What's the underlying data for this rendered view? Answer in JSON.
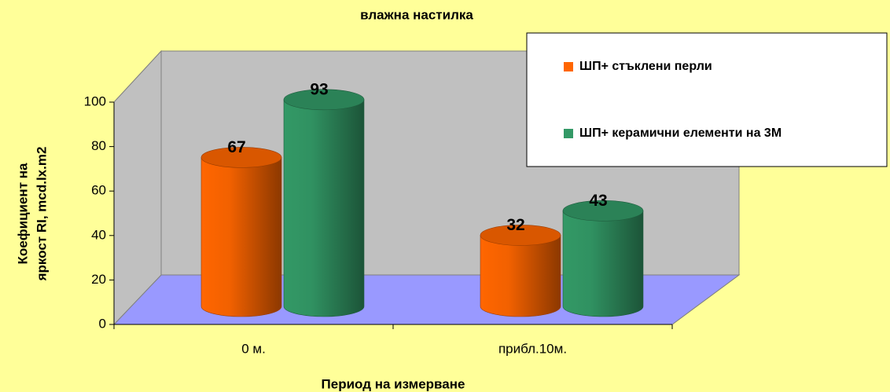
{
  "chart_data": {
    "type": "cylinder_bar",
    "title": "влажна настилка",
    "x_label": "Период на измерване",
    "y_label": [
      "Коефициент на",
      "яркост RI, mcd.lx.m2"
    ],
    "categories": [
      "0 м.",
      "прибл.10м."
    ],
    "series": [
      {
        "name": "ШП+ стъклени перли",
        "color": "#ff6600",
        "values": [
          67,
          32
        ]
      },
      {
        "name": "ШП+ керамични елементи на 3М",
        "color": "#339966",
        "values": [
          93,
          43
        ]
      }
    ],
    "ylim": [
      0,
      100
    ],
    "yticks": [
      0,
      20,
      40,
      60,
      80,
      100
    ],
    "grid": false,
    "legend": "top-right"
  }
}
